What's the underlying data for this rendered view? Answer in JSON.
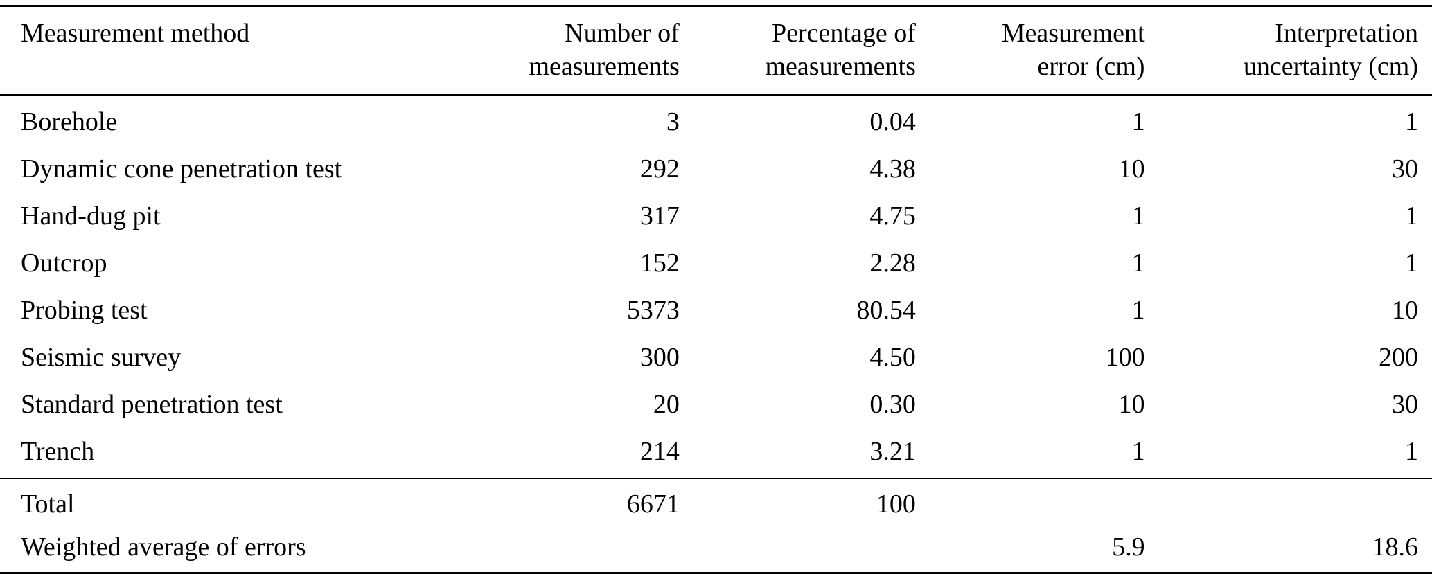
{
  "table": {
    "headers": [
      {
        "line1": "Measurement method",
        "line2": ""
      },
      {
        "line1": "Number of",
        "line2": "measurements"
      },
      {
        "line1": "Percentage of",
        "line2": "measurements"
      },
      {
        "line1": "Measurement",
        "line2": "error (cm)"
      },
      {
        "line1": "Interpretation",
        "line2": "uncertainty (cm)"
      }
    ],
    "rows": [
      {
        "cells": [
          "Borehole",
          "3",
          "0.04",
          "1",
          "1"
        ]
      },
      {
        "cells": [
          "Dynamic cone penetration test",
          "292",
          "4.38",
          "10",
          "30"
        ]
      },
      {
        "cells": [
          "Hand-dug pit",
          "317",
          "4.75",
          "1",
          "1"
        ]
      },
      {
        "cells": [
          "Outcrop",
          "152",
          "2.28",
          "1",
          "1"
        ]
      },
      {
        "cells": [
          "Probing test",
          "5373",
          "80.54",
          "1",
          "10"
        ]
      },
      {
        "cells": [
          "Seismic survey",
          "300",
          "4.50",
          "100",
          "200"
        ]
      },
      {
        "cells": [
          "Standard penetration test",
          "20",
          "0.30",
          "10",
          "30"
        ]
      },
      {
        "cells": [
          "Trench",
          "214",
          "3.21",
          "1",
          "1"
        ]
      }
    ],
    "footer": [
      {
        "cells": [
          "Total",
          "6671",
          "100",
          "",
          ""
        ]
      },
      {
        "cells": [
          "Weighted average of errors",
          "",
          "",
          "5.9",
          "18.6"
        ]
      }
    ],
    "colors": {
      "text": "#000000",
      "background": "#ffffff",
      "rule": "#000000"
    }
  }
}
